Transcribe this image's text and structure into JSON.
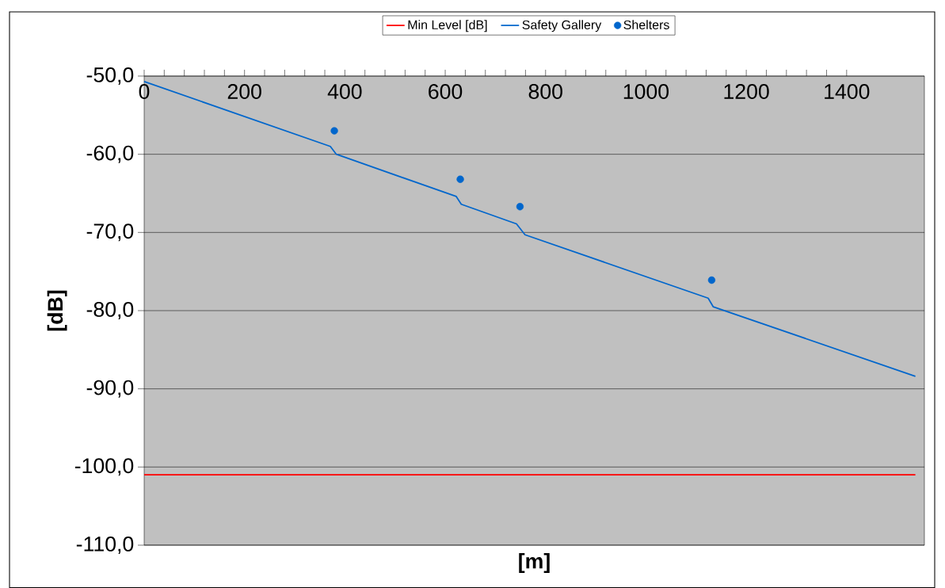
{
  "chart_data": {
    "type": "line",
    "xlabel": "[m]",
    "ylabel": "[dB]",
    "xlim": [
      0,
      1555
    ],
    "ylim": [
      -110,
      -50
    ],
    "xticks": [
      0,
      200,
      400,
      600,
      800,
      1000,
      1200,
      1400
    ],
    "yticks": [
      {
        "value": -110,
        "label": "-110,0"
      },
      {
        "value": -100,
        "label": "-100,0"
      },
      {
        "value": -90,
        "label": "-90,0"
      },
      {
        "value": -80,
        "label": "-80,0"
      },
      {
        "value": -70,
        "label": "-70,0"
      },
      {
        "value": -60,
        "label": "-60,0"
      },
      {
        "value": -50,
        "label": "-50,0"
      }
    ],
    "grid": "y",
    "legend": "top",
    "series": [
      {
        "name": "Min Level [dB]",
        "marker": "none",
        "color": "#ff0000",
        "x": [
          0,
          1537
        ],
        "values": [
          -101,
          -101
        ]
      },
      {
        "name": "Safety Gallery",
        "marker": "none",
        "color": "#0066cc",
        "x": [
          0,
          371,
          383,
          622,
          632,
          742,
          759,
          1124,
          1134,
          1537
        ],
        "values": [
          -50.7,
          -59.0,
          -60.0,
          -65.4,
          -66.4,
          -68.9,
          -70.3,
          -78.4,
          -79.5,
          -88.4
        ]
      },
      {
        "name": "Shelters",
        "type": "scatter",
        "marker": "circle",
        "color": "#0066cc",
        "x": [
          379,
          630,
          749,
          1131
        ],
        "values": [
          -57.0,
          -63.2,
          -66.7,
          -76.1
        ]
      }
    ]
  }
}
